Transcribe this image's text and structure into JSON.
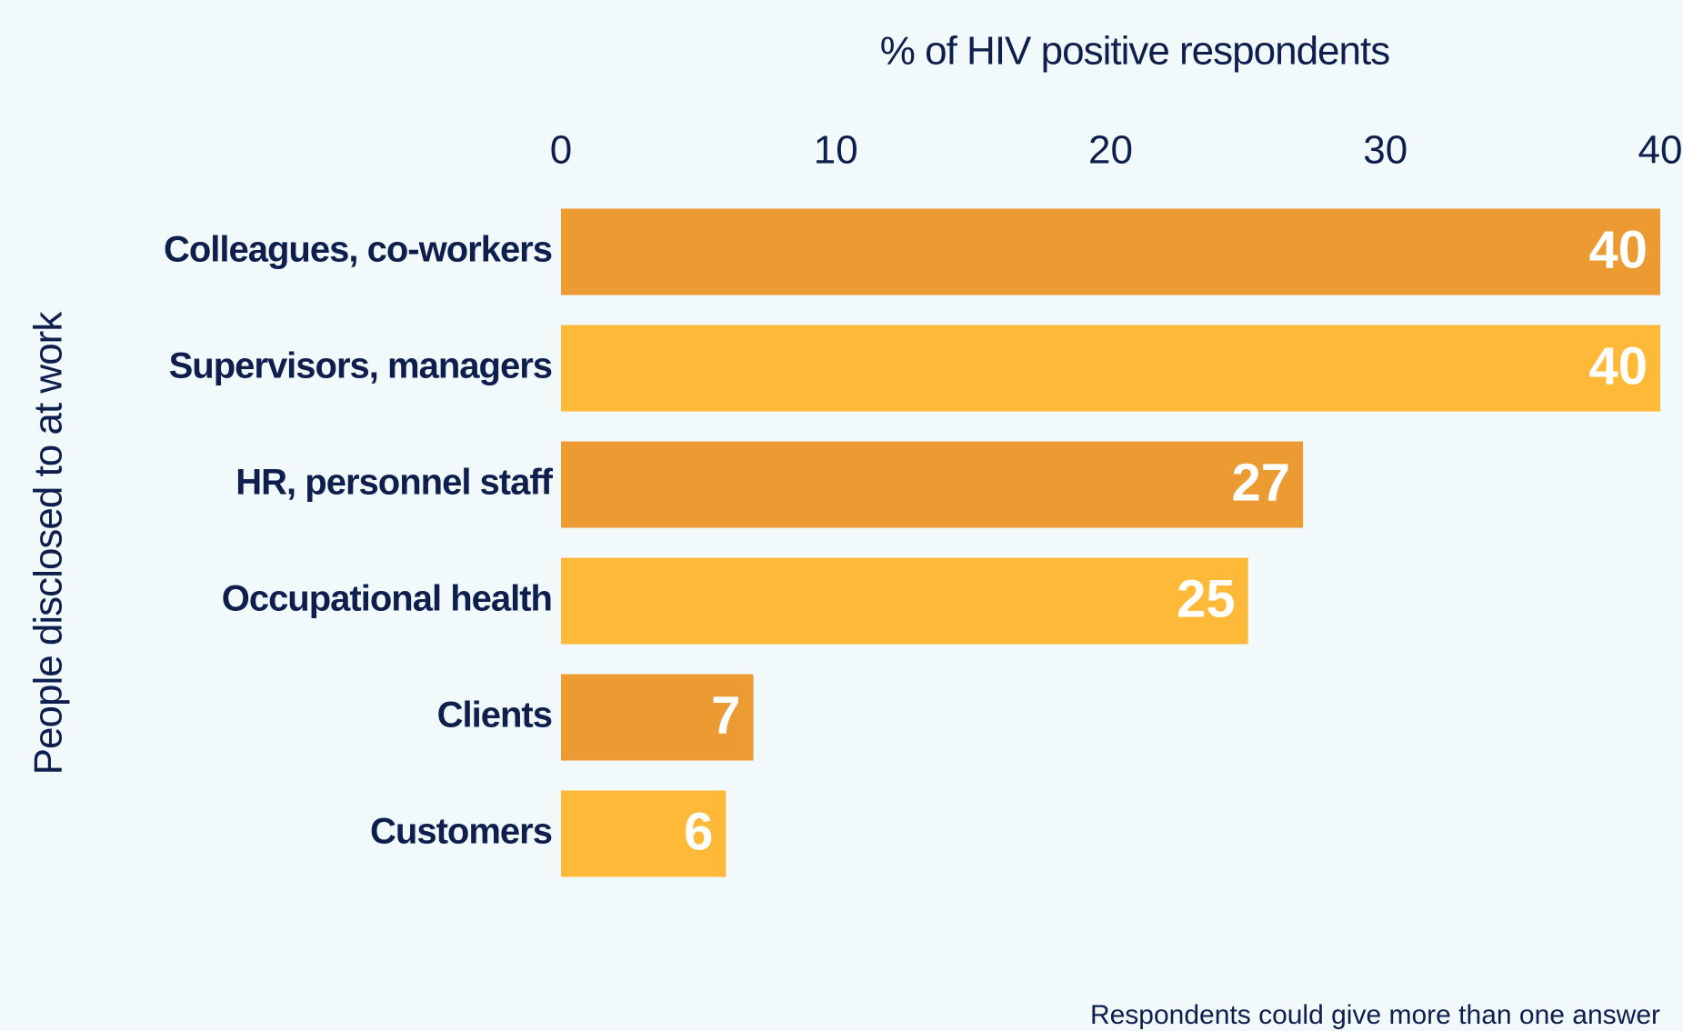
{
  "chart_data": {
    "type": "bar",
    "orientation": "horizontal",
    "x_label": "% of HIV positive respondents",
    "y_label": "People disclosed to at work",
    "categories": [
      "Colleagues, co-workers",
      "Supervisors, managers",
      "HR, personnel staff",
      "Occupational health",
      "Clients",
      "Customers"
    ],
    "values": [
      40,
      40,
      27,
      25,
      7,
      6
    ],
    "colors": [
      "#ec9b33",
      "#fdb937",
      "#ec9b33",
      "#fdb937",
      "#ec9b33",
      "#fdb937"
    ],
    "xlim": [
      0,
      40
    ],
    "xticks": [
      0,
      10,
      20,
      30,
      40
    ],
    "grid": false,
    "annotation": "Respondents could give more than one answer"
  }
}
